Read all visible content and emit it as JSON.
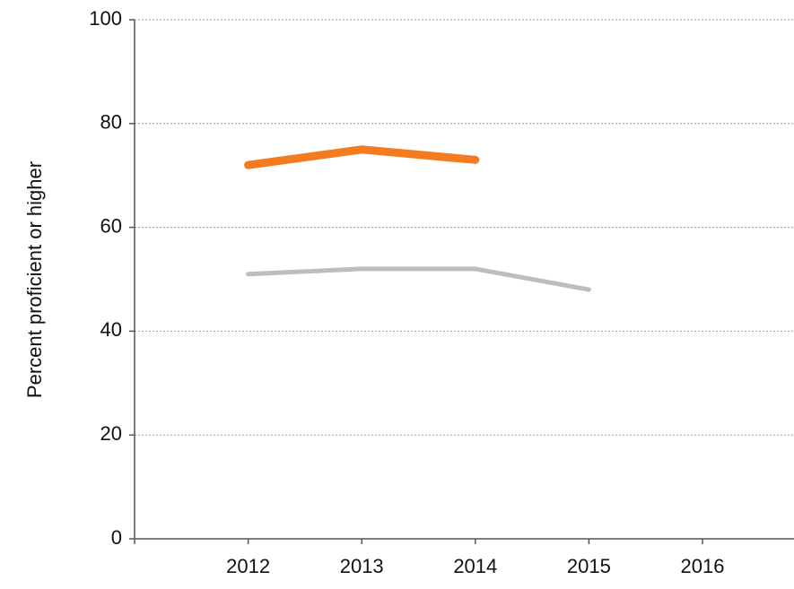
{
  "chart_data": {
    "type": "line",
    "y_label": "Percent proficient or higher",
    "categories": [
      "2012",
      "2013",
      "2014",
      "2015",
      "2016"
    ],
    "series": [
      {
        "color": "#f47b20",
        "values": [
          72,
          75,
          73,
          null,
          null
        ]
      },
      {
        "color": "#bdbdbd",
        "values": [
          51,
          52,
          52,
          48,
          null
        ]
      }
    ],
    "ylim": [
      0,
      100
    ],
    "yticks": [
      0,
      20,
      40,
      60,
      80,
      100
    ],
    "grid": true
  }
}
